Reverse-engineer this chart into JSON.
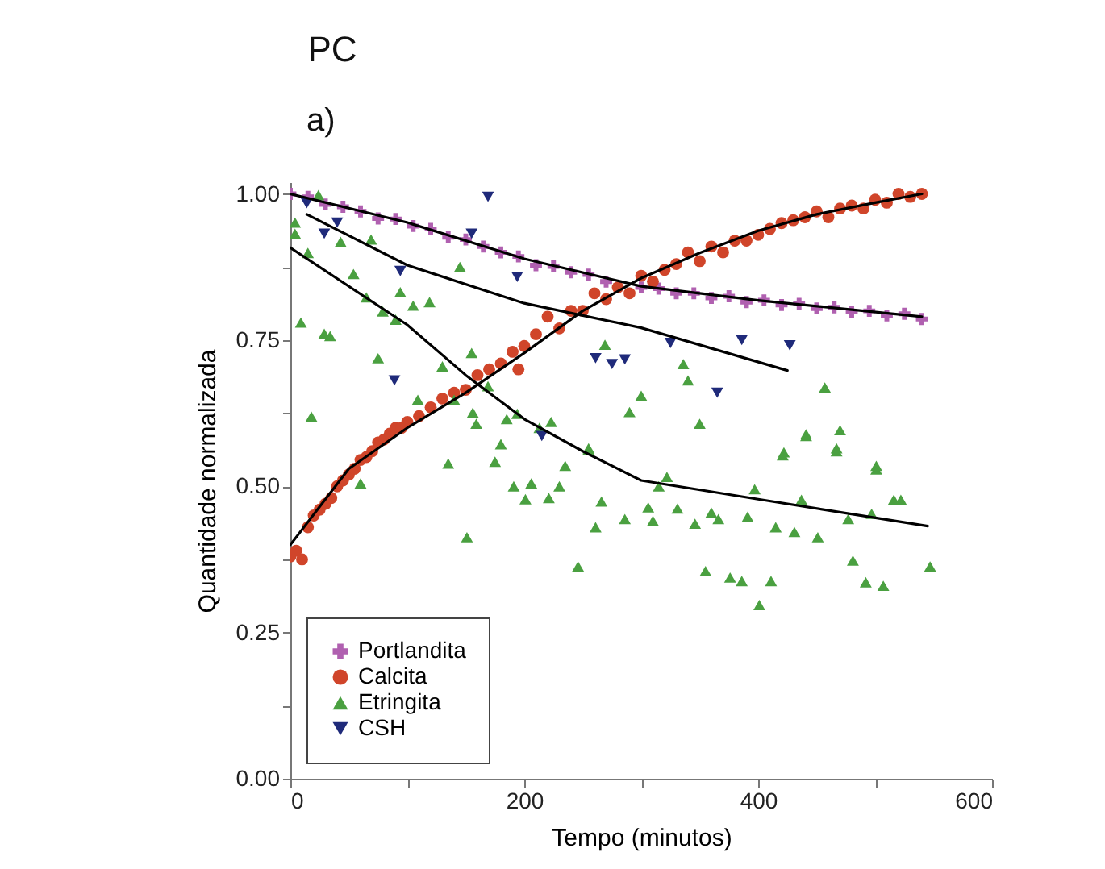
{
  "chart_data": {
    "type": "scatter",
    "title": "PC",
    "annotations": [
      "a)"
    ],
    "xlabel": "Tempo (minutos)",
    "ylabel": "Quantidade normalizada",
    "xlim": [
      0,
      600
    ],
    "ylim": [
      0,
      1.02
    ],
    "xticks": [
      0,
      {
        "value": 100,
        "label": null
      },
      200,
      {
        "value": 300,
        "label": null
      },
      400,
      {
        "value": 500,
        "label": null
      },
      600
    ],
    "yticks": [
      {
        "value": 0,
        "label": "0.00"
      },
      {
        "value": 0.125,
        "label": null
      },
      {
        "value": 0.25,
        "label": "0.25"
      },
      {
        "value": 0.375,
        "label": null
      },
      {
        "value": 0.5,
        "label": "0.50"
      },
      {
        "value": 0.625,
        "label": null
      },
      {
        "value": 0.75,
        "label": "0.75"
      },
      {
        "value": 0.875,
        "label": null
      },
      {
        "value": 1,
        "label": "1.00"
      }
    ],
    "grid": false,
    "legend": "bottom left",
    "series": [
      {
        "name": "Portlandita",
        "color": "#b060b0",
        "marker": "cross",
        "x": [
          0,
          15,
          30,
          45,
          60,
          75,
          90,
          105,
          120,
          135,
          150,
          165,
          180,
          195,
          210,
          225,
          240,
          255,
          270,
          285,
          300,
          315,
          330,
          345,
          360,
          375,
          390,
          405,
          420,
          435,
          450,
          465,
          480,
          495,
          510,
          525,
          540
        ],
        "values": [
          1.0,
          0.995,
          0.982,
          0.978,
          0.97,
          0.958,
          0.957,
          0.945,
          0.94,
          0.926,
          0.922,
          0.91,
          0.9,
          0.893,
          0.878,
          0.876,
          0.866,
          0.862,
          0.85,
          null,
          0.84,
          0.838,
          0.83,
          0.83,
          0.822,
          0.825,
          0.815,
          0.818,
          0.81,
          0.812,
          0.804,
          0.806,
          0.798,
          0.8,
          0.792,
          0.795,
          0.786
        ]
      },
      {
        "name": "Calcita",
        "color": "#d0452a",
        "marker": "circle",
        "x": [
          0,
          5,
          10,
          15,
          20,
          25,
          30,
          35,
          40,
          45,
          50,
          55,
          60,
          65,
          70,
          75,
          80,
          85,
          90,
          95,
          100,
          110,
          120,
          130,
          140,
          150,
          160,
          170,
          180,
          190,
          195,
          200,
          210,
          220,
          230,
          240,
          250,
          260,
          270,
          280,
          290,
          300,
          310,
          320,
          330,
          340,
          350,
          360,
          370,
          380,
          390,
          400,
          410,
          420,
          430,
          440,
          450,
          460,
          470,
          480,
          490,
          500,
          510,
          520,
          530,
          540
        ],
        "values": [
          0.38,
          0.39,
          0.375,
          0.43,
          0.45,
          0.46,
          0.47,
          0.48,
          0.5,
          0.51,
          0.52,
          0.53,
          0.545,
          0.55,
          0.56,
          0.575,
          0.58,
          0.59,
          0.6,
          0.6,
          0.61,
          0.62,
          0.635,
          0.65,
          0.66,
          0.665,
          0.69,
          0.7,
          0.71,
          0.73,
          0.7,
          0.74,
          0.76,
          0.79,
          0.77,
          0.8,
          0.8,
          0.83,
          0.82,
          0.84,
          0.83,
          0.86,
          0.85,
          0.87,
          0.88,
          0.9,
          0.885,
          0.91,
          0.9,
          0.92,
          0.92,
          0.93,
          0.94,
          0.95,
          0.955,
          0.96,
          0.97,
          0.96,
          0.975,
          0.98,
          0.975,
          0.99,
          0.985,
          1.0,
          0.995,
          1.0
        ]
      },
      {
        "name": "Etringita",
        "color": "#4aa040",
        "marker": "triangle",
        "x": [
          4,
          4,
          9,
          15,
          18,
          24,
          29,
          34,
          43,
          54,
          60,
          65,
          69,
          75,
          79,
          90,
          94,
          105,
          109,
          119,
          130,
          135,
          140,
          145,
          151,
          155,
          156,
          159,
          169,
          175,
          180,
          185,
          191,
          194,
          201,
          206,
          213,
          221,
          223,
          230,
          235,
          246,
          255,
          255,
          261,
          266,
          269,
          286,
          290,
          300,
          306,
          310,
          315,
          322,
          331,
          336,
          340,
          346,
          350,
          355,
          360,
          366,
          376,
          386,
          391,
          397,
          401,
          411,
          415,
          421,
          422,
          431,
          437,
          441,
          441,
          451,
          457,
          467,
          467,
          470,
          477,
          481,
          492,
          497,
          501,
          501,
          507,
          516,
          522,
          547
        ],
        "values": [
          0.951,
          0.932,
          0.78,
          0.899,
          0.619,
          0.998,
          0.761,
          0.757,
          0.918,
          0.863,
          0.505,
          0.823,
          0.922,
          0.719,
          0.799,
          0.785,
          0.832,
          0.809,
          0.648,
          0.815,
          0.705,
          0.539,
          0.648,
          0.875,
          0.413,
          0.728,
          0.626,
          0.607,
          0.671,
          0.542,
          0.572,
          0.615,
          0.5,
          0.624,
          0.478,
          0.505,
          0.6,
          0.48,
          0.61,
          0.5,
          0.535,
          0.363,
          0.563,
          0.565,
          0.43,
          0.474,
          0.742,
          0.444,
          0.627,
          0.655,
          0.464,
          0.441,
          0.5,
          0.516,
          0.462,
          0.709,
          0.681,
          0.436,
          0.607,
          0.355,
          0.455,
          0.444,
          0.344,
          0.338,
          0.448,
          0.495,
          0.297,
          0.338,
          0.43,
          0.553,
          0.558,
          0.422,
          0.477,
          0.586,
          0.589,
          0.413,
          0.669,
          0.565,
          0.56,
          0.596,
          0.444,
          0.373,
          0.336,
          0.453,
          0.529,
          0.535,
          0.33,
          0.477,
          0.477,
          0.363
        ]
      },
      {
        "name": "CSH",
        "color": "#1f2a7a",
        "marker": "triangle-down",
        "x": [
          14,
          29,
          40,
          89,
          94,
          155,
          169,
          194,
          215,
          261,
          275,
          286,
          325,
          365,
          386,
          427
        ],
        "values": [
          0.984,
          0.932,
          0.951,
          0.681,
          0.868,
          0.932,
          0.995,
          0.858,
          0.586,
          0.719,
          0.709,
          0.717,
          0.745,
          0.66,
          0.75,
          0.741
        ]
      },
      {
        "type": "line",
        "color": "#000000",
        "x": [
          0,
          100,
          200,
          300,
          400,
          540
        ],
        "values": [
          1.0,
          0.951,
          0.889,
          0.842,
          0.818,
          0.79
        ]
      },
      {
        "type": "line",
        "color": "#000000",
        "x": [
          0,
          50,
          100,
          150,
          200,
          250,
          300,
          350,
          400,
          450,
          500,
          540
        ],
        "values": [
          0.4,
          0.53,
          0.6,
          0.66,
          0.728,
          0.8,
          0.856,
          0.899,
          0.937,
          0.965,
          0.985,
          1.0
        ]
      },
      {
        "type": "line",
        "color": "#000000",
        "x": [
          14,
          100,
          200,
          300,
          425
        ],
        "values": [
          0.965,
          0.878,
          0.813,
          0.771,
          0.698
        ]
      },
      {
        "type": "line",
        "color": "#000000",
        "x": [
          0,
          100,
          150,
          200,
          250,
          300,
          400,
          545
        ],
        "values": [
          0.908,
          0.776,
          0.69,
          0.615,
          0.56,
          0.51,
          0.478,
          0.432
        ]
      }
    ]
  }
}
